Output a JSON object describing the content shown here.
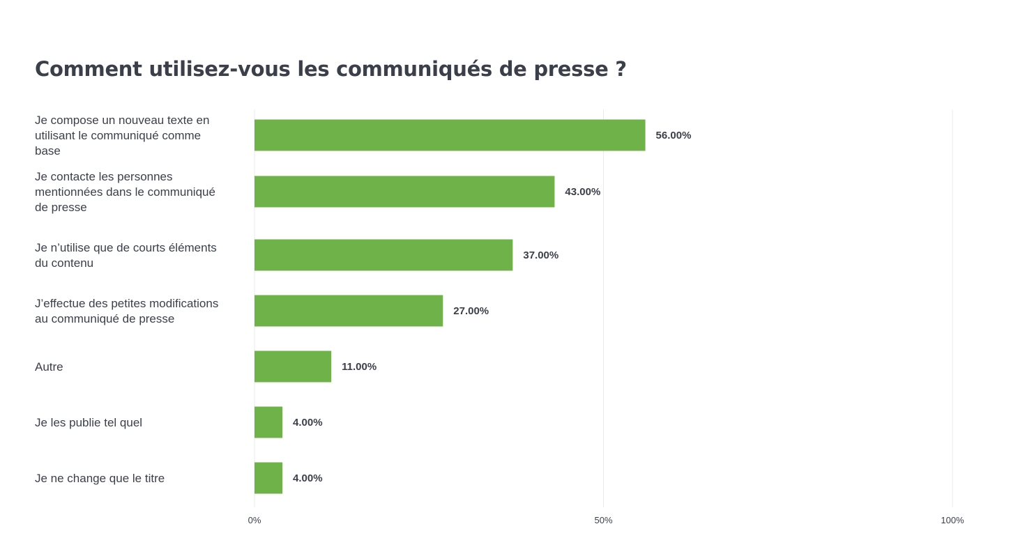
{
  "chart_data": {
    "type": "bar",
    "orientation": "horizontal",
    "title": "Comment utilisez-vous les communiqués de presse ?",
    "categories": [
      "Je compose un nouveau texte en utilisant le communiqué comme base",
      "Je contacte les personnes mentionnées dans le communiqué de presse",
      "Je n’utilise que de courts éléments du contenu",
      "J’effectue des petites modifications au communiqué de presse",
      "Autre",
      "Je les publie tel quel",
      "Je ne change que le titre"
    ],
    "category_lines": [
      [
        "Je compose un nouveau texte en",
        "utilisant le communiqué comme",
        "base"
      ],
      [
        "Je contacte les personnes",
        "mentionnées dans le communiqué",
        "de presse"
      ],
      [
        "Je n’utilise que de courts éléments",
        "du contenu"
      ],
      [
        "J’effectue des petites modifications",
        "au communiqué de presse"
      ],
      [
        "Autre"
      ],
      [
        "Je les publie tel quel"
      ],
      [
        "Je ne change que le titre"
      ]
    ],
    "values": [
      56,
      43,
      37,
      27,
      11,
      4,
      4
    ],
    "value_labels": [
      "56.00%",
      "43.00%",
      "37.00%",
      "27.00%",
      "11.00%",
      "4.00%",
      "4.00%"
    ],
    "xlim": [
      0,
      100
    ],
    "ticks": [
      0,
      50,
      100
    ],
    "tick_labels": [
      "0%",
      "50%",
      "100%"
    ],
    "grid": true,
    "legend": "none",
    "bar_color": "#70b24a",
    "grid_color": "#ebebeb",
    "text_color": "#3a3f4a"
  }
}
